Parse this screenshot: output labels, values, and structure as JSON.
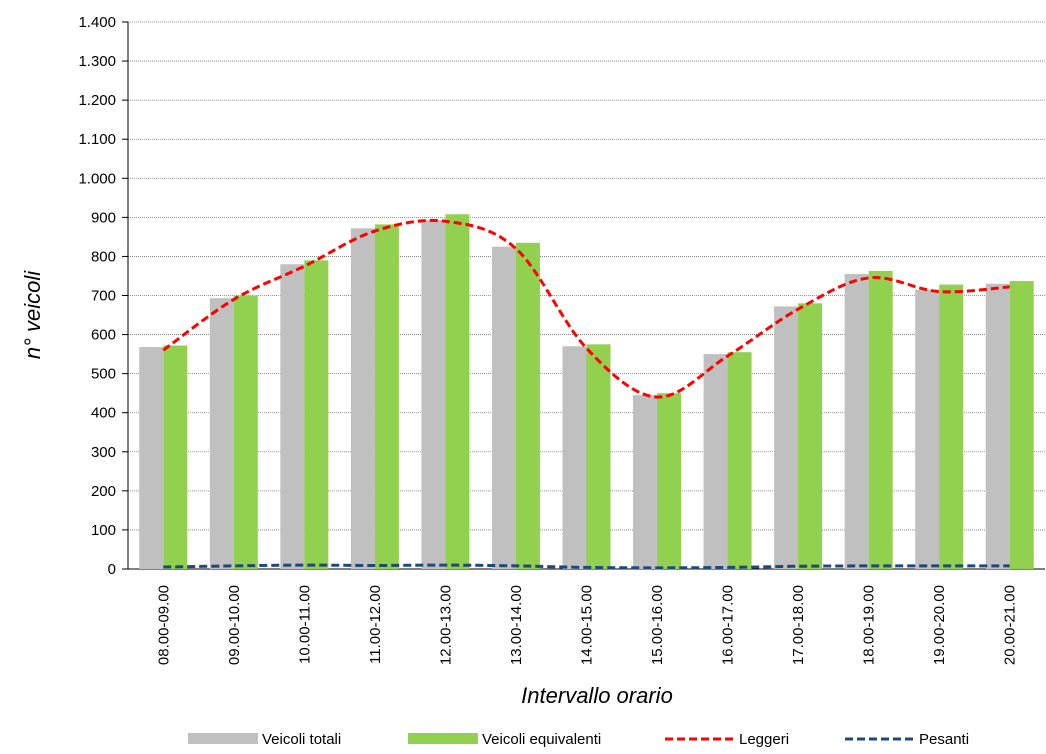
{
  "chart_data": {
    "type": "bar",
    "x_label": "Intervallo orario",
    "y_label": "n° veicoli",
    "categories": [
      "08.00-09.00",
      "09.00-10.00",
      "10.00-11.00",
      "11.00-12.00",
      "12.00-13.00",
      "13.00-14.00",
      "14.00-15.00",
      "15.00-16.00",
      "16.00-17.00",
      "17.00-18.00",
      "18.00-19.00",
      "19.00-20.00",
      "20.00-21.00"
    ],
    "series": [
      {
        "name": "Veicoli totali",
        "type": "bar",
        "color": "#c0c0c0",
        "values": [
          568,
          693,
          780,
          872,
          893,
          825,
          570,
          445,
          550,
          672,
          755,
          715,
          730
        ]
      },
      {
        "name": "Veicoli equivalenti",
        "type": "bar",
        "color": "#92d050",
        "values": [
          572,
          700,
          790,
          882,
          908,
          835,
          575,
          450,
          555,
          680,
          763,
          728,
          737
        ]
      },
      {
        "name": "Leggeri",
        "type": "line",
        "color": "#ff0000",
        "values": [
          560,
          690,
          775,
          865,
          890,
          820,
          565,
          440,
          545,
          665,
          745,
          710,
          722
        ]
      },
      {
        "name": "Pesanti",
        "type": "line",
        "color": "#1f497d",
        "values": [
          5,
          8,
          10,
          9,
          10,
          8,
          4,
          3,
          4,
          7,
          8,
          8,
          8
        ]
      }
    ],
    "ylim": [
      0,
      1400
    ],
    "yticks": [
      0,
      100,
      200,
      300,
      400,
      500,
      600,
      700,
      800,
      900,
      {
        "value": 1000,
        "label": "1.000"
      },
      {
        "value": 1100,
        "label": "1.100"
      },
      {
        "value": 1200,
        "label": "1.200"
      },
      {
        "value": 1300,
        "label": "1.300"
      },
      {
        "value": 1400,
        "label": "1.400"
      }
    ],
    "grid": true
  }
}
